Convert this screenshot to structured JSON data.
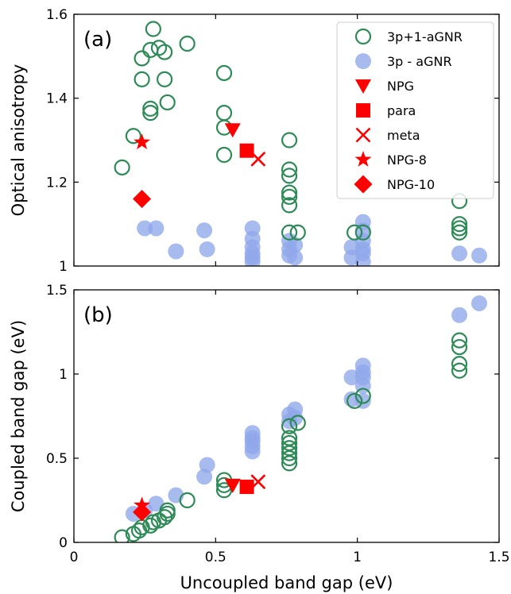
{
  "chart_data": [
    {
      "type": "scatter",
      "panel_label": "(a)",
      "xlabel": "",
      "ylabel": "Optical anisotropy",
      "xlim": [
        0,
        1.5
      ],
      "ylim": [
        1.0,
        1.6
      ],
      "xticks": [
        0,
        0.5,
        1,
        1.5
      ],
      "xtick_labels_shown": false,
      "yticks": [
        1,
        1.2,
        1.4,
        1.6
      ],
      "ytick_labels": [
        "1",
        "1.2",
        "1.4",
        "1.6"
      ],
      "grid": false,
      "legend_position": "top-right",
      "series": [
        {
          "name": "3p+1-aGNR",
          "marker": "open-circle",
          "color": "#2e8b57",
          "points": [
            [
              0.17,
              1.235
            ],
            [
              0.21,
              1.31
            ],
            [
              0.24,
              1.445
            ],
            [
              0.24,
              1.495
            ],
            [
              0.27,
              1.515
            ],
            [
              0.28,
              1.565
            ],
            [
              0.27,
              1.375
            ],
            [
              0.27,
              1.365
            ],
            [
              0.3,
              1.52
            ],
            [
              0.32,
              1.51
            ],
            [
              0.32,
              1.445
            ],
            [
              0.33,
              1.39
            ],
            [
              0.4,
              1.53
            ],
            [
              0.53,
              1.46
            ],
            [
              0.53,
              1.365
            ],
            [
              0.53,
              1.33
            ],
            [
              0.53,
              1.265
            ],
            [
              0.76,
              1.3
            ],
            [
              0.76,
              1.23
            ],
            [
              0.76,
              1.215
            ],
            [
              0.76,
              1.175
            ],
            [
              0.76,
              1.165
            ],
            [
              0.76,
              1.145
            ],
            [
              0.76,
              1.08
            ],
            [
              0.79,
              1.08
            ],
            [
              0.99,
              1.08
            ],
            [
              1.02,
              1.08
            ],
            [
              1.36,
              1.155
            ],
            [
              1.36,
              1.1
            ],
            [
              1.36,
              1.09
            ],
            [
              1.36,
              1.08
            ]
          ]
        },
        {
          "name": "3p - aGNR",
          "marker": "filled-circle",
          "color": "#8fa8ea",
          "points": [
            [
              0.25,
              1.09
            ],
            [
              0.29,
              1.09
            ],
            [
              0.36,
              1.035
            ],
            [
              0.46,
              1.085
            ],
            [
              0.47,
              1.04
            ],
            [
              0.63,
              1.09
            ],
            [
              0.63,
              1.065
            ],
            [
              0.63,
              1.045
            ],
            [
              0.63,
              1.03
            ],
            [
              0.63,
              1.02
            ],
            [
              0.63,
              1.01
            ],
            [
              0.76,
              1.06
            ],
            [
              0.76,
              1.04
            ],
            [
              0.76,
              1.025
            ],
            [
              0.78,
              1.05
            ],
            [
              0.78,
              1.02
            ],
            [
              0.98,
              1.045
            ],
            [
              0.98,
              1.02
            ],
            [
              1.02,
              1.105
            ],
            [
              1.02,
              1.085
            ],
            [
              1.02,
              1.06
            ],
            [
              1.02,
              1.04
            ],
            [
              1.02,
              1.03
            ],
            [
              1.02,
              1.01
            ],
            [
              1.36,
              1.03
            ],
            [
              1.43,
              1.025
            ]
          ]
        },
        {
          "name": "NPG",
          "marker": "triangle-down",
          "color": "#ff0000",
          "points": [
            [
              0.56,
              1.325
            ]
          ]
        },
        {
          "name": "para",
          "marker": "square",
          "color": "#ff0000",
          "points": [
            [
              0.61,
              1.275
            ]
          ]
        },
        {
          "name": "meta",
          "marker": "x",
          "color": "#ff0000",
          "points": [
            [
              0.65,
              1.255
            ]
          ]
        },
        {
          "name": "NPG-8",
          "marker": "star",
          "color": "#ff0000",
          "points": [
            [
              0.24,
              1.295
            ]
          ]
        },
        {
          "name": "NPG-10",
          "marker": "diamond",
          "color": "#ff0000",
          "points": [
            [
              0.24,
              1.16
            ]
          ]
        }
      ]
    },
    {
      "type": "scatter",
      "panel_label": "(b)",
      "xlabel": "Uncoupled band gap (eV)",
      "ylabel": "Coupled band gap (eV)",
      "xlim": [
        0,
        1.5
      ],
      "ylim": [
        0,
        1.5
      ],
      "xticks": [
        0,
        0.5,
        1,
        1.5
      ],
      "xtick_labels": [
        "0",
        "0.5",
        "1",
        "1.5"
      ],
      "yticks": [
        0,
        0.5,
        1,
        1.5
      ],
      "ytick_labels": [
        "0",
        "0.5",
        "1",
        "1.5"
      ],
      "grid": false,
      "series": [
        {
          "name": "3p+1-aGNR",
          "marker": "open-circle",
          "color": "#2e8b57",
          "points": [
            [
              0.17,
              0.03
            ],
            [
              0.21,
              0.05
            ],
            [
              0.23,
              0.07
            ],
            [
              0.24,
              0.09
            ],
            [
              0.27,
              0.1
            ],
            [
              0.28,
              0.12
            ],
            [
              0.3,
              0.13
            ],
            [
              0.32,
              0.15
            ],
            [
              0.33,
              0.17
            ],
            [
              0.33,
              0.19
            ],
            [
              0.4,
              0.25
            ],
            [
              0.53,
              0.31
            ],
            [
              0.53,
              0.34
            ],
            [
              0.53,
              0.37
            ],
            [
              0.76,
              0.47
            ],
            [
              0.76,
              0.5
            ],
            [
              0.76,
              0.53
            ],
            [
              0.76,
              0.56
            ],
            [
              0.76,
              0.59
            ],
            [
              0.76,
              0.62
            ],
            [
              0.76,
              0.69
            ],
            [
              0.79,
              0.71
            ],
            [
              0.99,
              0.84
            ],
            [
              1.02,
              0.87
            ],
            [
              1.36,
              1.02
            ],
            [
              1.36,
              1.06
            ],
            [
              1.36,
              1.16
            ],
            [
              1.36,
              1.2
            ]
          ]
        },
        {
          "name": "3p - aGNR",
          "marker": "filled-circle",
          "color": "#8fa8ea",
          "points": [
            [
              0.21,
              0.17
            ],
            [
              0.25,
              0.19
            ],
            [
              0.29,
              0.23
            ],
            [
              0.36,
              0.28
            ],
            [
              0.46,
              0.39
            ],
            [
              0.47,
              0.46
            ],
            [
              0.63,
              0.54
            ],
            [
              0.63,
              0.57
            ],
            [
              0.63,
              0.6
            ],
            [
              0.63,
              0.62
            ],
            [
              0.63,
              0.65
            ],
            [
              0.76,
              0.72
            ],
            [
              0.76,
              0.76
            ],
            [
              0.78,
              0.74
            ],
            [
              0.78,
              0.79
            ],
            [
              0.98,
              0.85
            ],
            [
              0.98,
              0.98
            ],
            [
              1.02,
              0.84
            ],
            [
              1.02,
              0.93
            ],
            [
              1.02,
              0.98
            ],
            [
              1.02,
              1.01
            ],
            [
              1.02,
              1.05
            ],
            [
              1.36,
              1.35
            ],
            [
              1.43,
              1.42
            ]
          ]
        },
        {
          "name": "NPG",
          "marker": "triangle-down",
          "color": "#ff0000",
          "points": [
            [
              0.56,
              0.34
            ]
          ]
        },
        {
          "name": "para",
          "marker": "square",
          "color": "#ff0000",
          "points": [
            [
              0.61,
              0.33
            ]
          ]
        },
        {
          "name": "meta",
          "marker": "x",
          "color": "#ff0000",
          "points": [
            [
              0.65,
              0.36
            ]
          ]
        },
        {
          "name": "NPG-8",
          "marker": "star",
          "color": "#ff0000",
          "points": [
            [
              0.24,
              0.22
            ]
          ]
        },
        {
          "name": "NPG-10",
          "marker": "diamond",
          "color": "#ff0000",
          "points": [
            [
              0.24,
              0.18
            ]
          ]
        }
      ]
    }
  ]
}
